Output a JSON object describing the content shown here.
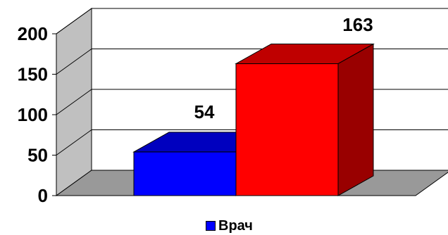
{
  "chart_data": {
    "type": "bar",
    "three_d": true,
    "categories": [
      ""
    ],
    "series": [
      {
        "name": "Врач",
        "values": [
          54
        ],
        "color": "#0000ff"
      }
    ],
    "extra_bar": {
      "value": 163,
      "color": "#ff0000"
    },
    "yticks": [
      "0",
      "50",
      "100",
      "150",
      "200"
    ],
    "ylim": [
      0,
      200
    ],
    "grid": true,
    "wall_color": "#c0c0c0",
    "floor_color": "#999999",
    "legend_position": "bottom-center"
  }
}
